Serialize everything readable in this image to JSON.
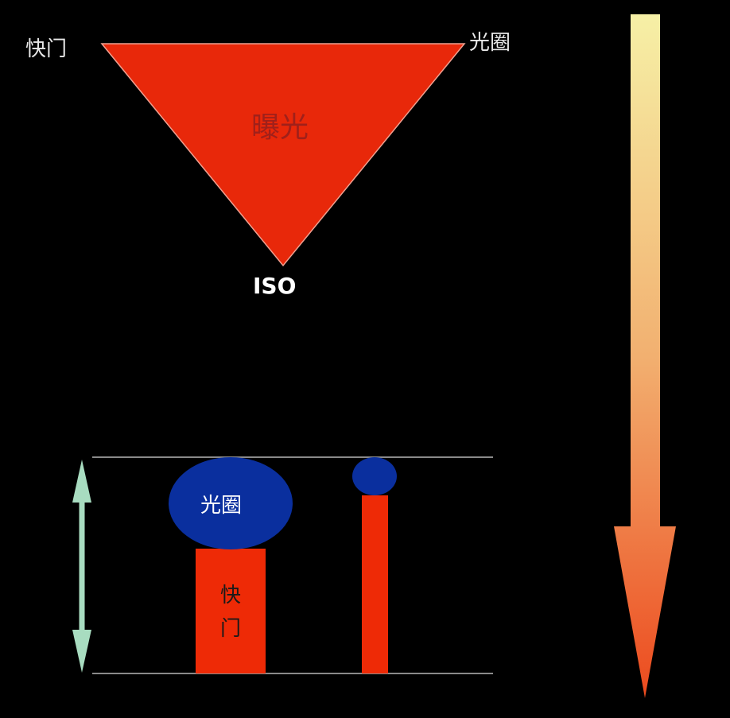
{
  "triangle": {
    "top_left_label": "快门",
    "top_right_label": "光圈",
    "center_label": "曝光",
    "bottom_label": "ISO"
  },
  "balance": {
    "aperture_label": "光圈",
    "shutter_label_line1": "快",
    "shutter_label_line2": "门"
  },
  "colors": {
    "background": "#000000",
    "triangle_fill": "#e8280a",
    "bar_fill": "#ee2a06",
    "ellipse_fill": "#0a2f9e",
    "guide_line": "#8a8a8a",
    "double_arrow": "#a8dcc0",
    "gradient_top": "#f6f0a6",
    "gradient_bottom": "#ec4a1e"
  }
}
